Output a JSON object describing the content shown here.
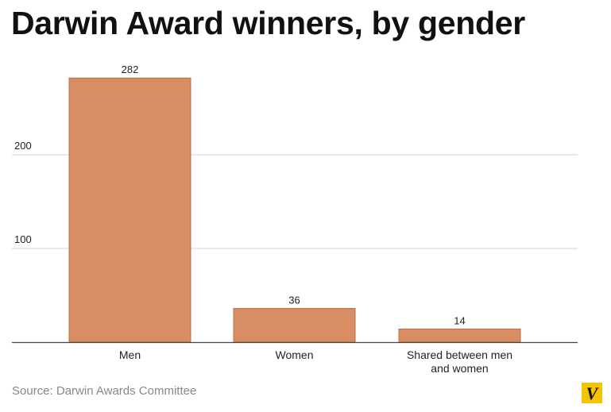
{
  "chart_data": {
    "type": "bar",
    "title": "Darwin Award winners, by gender",
    "categories": [
      "Men",
      "Women",
      "Shared between men and women"
    ],
    "category_lines": [
      [
        "Men"
      ],
      [
        "Women"
      ],
      [
        "Shared between men",
        "and women"
      ]
    ],
    "values": [
      282,
      36,
      14
    ],
    "data_labels": [
      "282",
      "36",
      "14"
    ],
    "yticks": [
      100,
      200
    ],
    "ytick_labels": [
      "100",
      "200"
    ],
    "ylim": [
      0,
      300
    ],
    "grid": true,
    "xlabel": "",
    "ylabel": "",
    "colors": {
      "bar": "#d98d62",
      "bar_stroke": "#b8704a",
      "grid": "#d0d0d0",
      "axis": "#444444",
      "text": "#222222"
    }
  },
  "source": "Source: Darwin Awards Committee",
  "logo": {
    "icon": "vox-logo-icon",
    "letter": "V",
    "bg": "#f2c500"
  }
}
